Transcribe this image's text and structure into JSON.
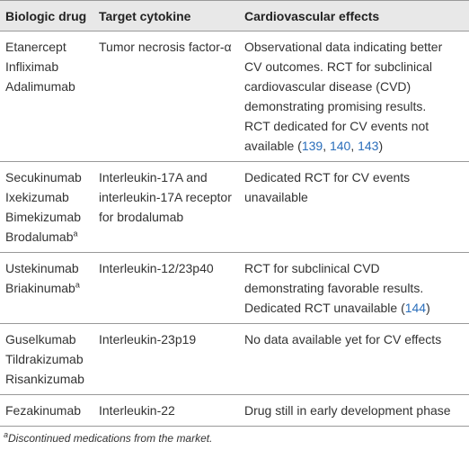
{
  "table": {
    "header": [
      "Biologic drug",
      "Target cytokine",
      "Cardiovascular effects"
    ],
    "rows": [
      {
        "drugs": [
          "Etanercept",
          "Infliximab",
          "Adalimumab"
        ],
        "cytokine": [
          "Tumor necrosis factor-α"
        ],
        "effects": [
          "Observational data indicating better",
          "CV outcomes. RCT for subclinical",
          "cardiovascular disease (CVD)",
          "demonstrating promising results.",
          "RCT dedicated for CV events not",
          [
            "available (",
            {
              "ref": "139"
            },
            ", ",
            {
              "ref": "140"
            },
            ", ",
            {
              "ref": "143"
            },
            ")"
          ]
        ]
      },
      {
        "drugs": [
          "Secukinumab",
          "Ixekizumab",
          "Bimekizumab",
          {
            "name": "Brodalumab",
            "note": "a"
          }
        ],
        "cytokine": [
          "Interleukin-17A and",
          "interleukin-17A receptor",
          "for brodalumab"
        ],
        "effects": [
          "Dedicated RCT for CV events",
          "unavailable"
        ]
      },
      {
        "drugs": [
          "Ustekinumab",
          {
            "name": "Briakinumab",
            "note": "a"
          }
        ],
        "cytokine": [
          "Interleukin-12/23p40"
        ],
        "effects": [
          "RCT for subclinical CVD",
          "demonstrating favorable results.",
          [
            "Dedicated RCT unavailable (",
            {
              "ref": "144"
            },
            ")"
          ]
        ]
      },
      {
        "drugs": [
          "Guselkumab",
          "Tildrakizumab",
          "Risankizumab"
        ],
        "cytokine": [
          "Interleukin-23p19"
        ],
        "effects": [
          "No data available yet for CV effects"
        ]
      },
      {
        "drugs": [
          "Fezakinumab"
        ],
        "cytokine": [
          "Interleukin-22"
        ],
        "effects": [
          "Drug still in early development phase"
        ]
      }
    ]
  },
  "footnote": {
    "marker": "a",
    "text": "Discontinued medications from the market."
  }
}
